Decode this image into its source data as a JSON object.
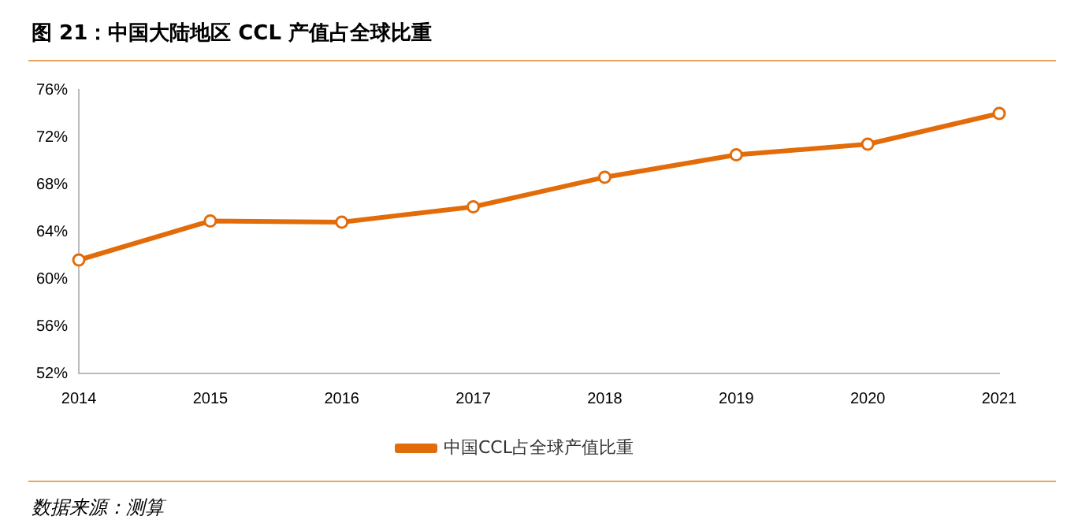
{
  "chart_data": {
    "type": "line",
    "title": "图 21：中国大陆地区 CCL 产值占全球比重",
    "categories": [
      "2014",
      "2015",
      "2016",
      "2017",
      "2018",
      "2019",
      "2020",
      "2021"
    ],
    "series": [
      {
        "name": "中国CCL占全球产值比重",
        "color": "#e36c0a",
        "values": [
          61.6,
          64.9,
          64.8,
          66.1,
          68.6,
          70.5,
          71.4,
          74.0
        ]
      }
    ],
    "ylim": [
      52,
      76
    ],
    "yticks": [
      {
        "value": 52,
        "label": "52%"
      },
      {
        "value": 56,
        "label": "56%"
      },
      {
        "value": 60,
        "label": "60%"
      },
      {
        "value": 64,
        "label": "64%"
      },
      {
        "value": 68,
        "label": "68%"
      },
      {
        "value": 72,
        "label": "72%"
      },
      {
        "value": 76,
        "label": "76%"
      }
    ],
    "grid": false,
    "legend": "bottom",
    "marker": "circle",
    "line_style": "solid",
    "annotations": [
      "数据来源：测算"
    ]
  }
}
